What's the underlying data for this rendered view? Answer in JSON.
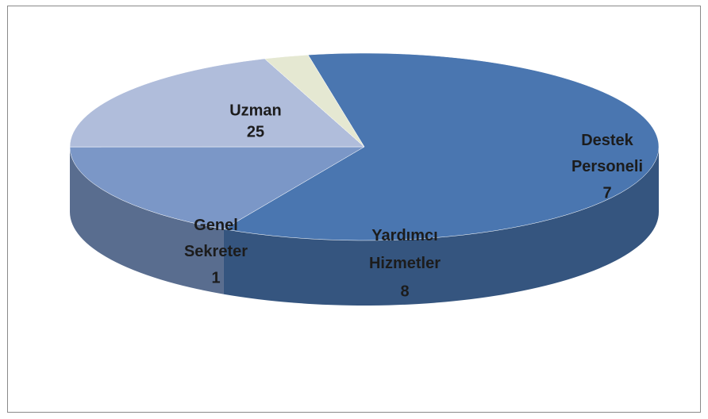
{
  "chart_data": {
    "type": "pie",
    "categories": [
      "Uzman",
      "Destek Personeli",
      "Yardımcı Hizmetler",
      "Genel Sekreter"
    ],
    "values": [
      25,
      7,
      8,
      1
    ],
    "colors": [
      "#4a76b0",
      "#7b97c7",
      "#b0bddb",
      "#e5e8d2"
    ]
  }
}
